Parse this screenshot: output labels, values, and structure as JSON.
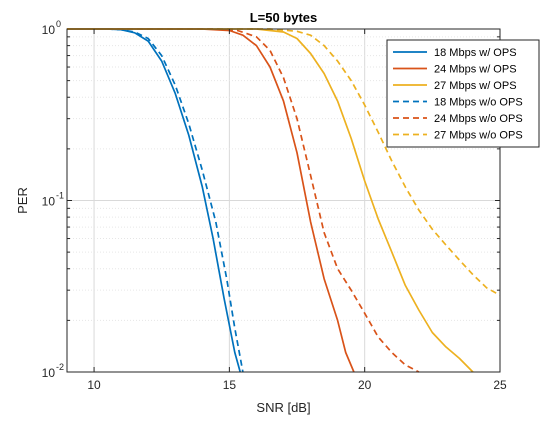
{
  "chart_data": {
    "type": "line",
    "title": "L=50 bytes",
    "xlabel": "SNR [dB]",
    "ylabel": "PER",
    "xlim": [
      9,
      25
    ],
    "ylim": [
      0.01,
      1
    ],
    "yscale": "log",
    "grid": true,
    "legend_position": "top-right",
    "x_ticks": [
      {
        "value": 10,
        "label": "10"
      },
      {
        "value": 15,
        "label": "15"
      },
      {
        "value": 20,
        "label": "20"
      },
      {
        "value": 25,
        "label": "25"
      }
    ],
    "y_ticks": [
      {
        "value": 1,
        "label": "10",
        "exp": "0"
      },
      {
        "value": 0.1,
        "label": "10",
        "exp": "-1"
      },
      {
        "value": 0.01,
        "label": "10",
        "exp": "-2"
      }
    ],
    "series": [
      {
        "name": "18 Mbps w/ OPS",
        "color": "#0072BD",
        "dash": "solid",
        "points": [
          [
            9,
            1
          ],
          [
            10,
            1
          ],
          [
            10.5,
            1
          ],
          [
            11,
            0.99
          ],
          [
            11.5,
            0.95
          ],
          [
            12,
            0.85
          ],
          [
            12.5,
            0.65
          ],
          [
            13,
            0.42
          ],
          [
            13.5,
            0.24
          ],
          [
            14,
            0.12
          ],
          [
            14.4,
            0.06
          ],
          [
            14.8,
            0.027
          ],
          [
            15.2,
            0.013
          ],
          [
            15.4,
            0.01
          ]
        ]
      },
      {
        "name": "24 Mbps w/ OPS",
        "color": "#D95319",
        "dash": "solid",
        "points": [
          [
            9,
            1
          ],
          [
            12,
            1
          ],
          [
            14,
            1
          ],
          [
            15,
            0.98
          ],
          [
            15.5,
            0.92
          ],
          [
            16,
            0.8
          ],
          [
            16.5,
            0.6
          ],
          [
            17,
            0.38
          ],
          [
            17.5,
            0.19
          ],
          [
            18,
            0.075
          ],
          [
            18.5,
            0.035
          ],
          [
            19,
            0.02
          ],
          [
            19.3,
            0.013
          ],
          [
            19.6,
            0.01
          ]
        ]
      },
      {
        "name": "27 Mbps w/ OPS",
        "color": "#EDB120",
        "dash": "solid",
        "points": [
          [
            9,
            1
          ],
          [
            14,
            1
          ],
          [
            16,
            1
          ],
          [
            17,
            0.96
          ],
          [
            17.5,
            0.88
          ],
          [
            18,
            0.72
          ],
          [
            18.5,
            0.55
          ],
          [
            19,
            0.38
          ],
          [
            19.5,
            0.23
          ],
          [
            20,
            0.13
          ],
          [
            20.5,
            0.078
          ],
          [
            21,
            0.05
          ],
          [
            21.5,
            0.032
          ],
          [
            22,
            0.023
          ],
          [
            22.5,
            0.017
          ],
          [
            23,
            0.014
          ],
          [
            23.5,
            0.012
          ],
          [
            24,
            0.01
          ]
        ]
      },
      {
        "name": "18 Mbps w/o OPS",
        "color": "#0072BD",
        "dash": "dashed",
        "points": [
          [
            9,
            1
          ],
          [
            10,
            1
          ],
          [
            10.5,
            1
          ],
          [
            11,
            0.99
          ],
          [
            11.5,
            0.96
          ],
          [
            12,
            0.88
          ],
          [
            12.5,
            0.7
          ],
          [
            13,
            0.47
          ],
          [
            13.5,
            0.28
          ],
          [
            14,
            0.15
          ],
          [
            14.5,
            0.075
          ],
          [
            14.9,
            0.035
          ],
          [
            15.2,
            0.018
          ],
          [
            15.5,
            0.01
          ]
        ]
      },
      {
        "name": "24 Mbps w/o OPS",
        "color": "#D95319",
        "dash": "dashed",
        "points": [
          [
            9,
            1
          ],
          [
            13,
            1
          ],
          [
            14.5,
            1
          ],
          [
            15.3,
            0.98
          ],
          [
            16,
            0.9
          ],
          [
            16.5,
            0.75
          ],
          [
            17,
            0.52
          ],
          [
            17.5,
            0.3
          ],
          [
            18,
            0.14
          ],
          [
            18.5,
            0.065
          ],
          [
            19,
            0.04
          ],
          [
            19.5,
            0.03
          ],
          [
            20,
            0.022
          ],
          [
            20.5,
            0.016
          ],
          [
            21,
            0.013
          ],
          [
            21.5,
            0.011
          ],
          [
            22,
            0.01
          ]
        ]
      },
      {
        "name": "27 Mbps w/o OPS",
        "color": "#EDB120",
        "dash": "dashed",
        "points": [
          [
            9,
            1
          ],
          [
            15,
            1
          ],
          [
            16.5,
            1
          ],
          [
            17.5,
            0.97
          ],
          [
            18,
            0.92
          ],
          [
            18.5,
            0.8
          ],
          [
            19,
            0.65
          ],
          [
            19.5,
            0.5
          ],
          [
            20,
            0.36
          ],
          [
            20.5,
            0.25
          ],
          [
            21,
            0.17
          ],
          [
            21.5,
            0.12
          ],
          [
            22,
            0.088
          ],
          [
            22.5,
            0.068
          ],
          [
            23,
            0.055
          ],
          [
            23.5,
            0.045
          ],
          [
            24,
            0.037
          ],
          [
            24.5,
            0.031
          ],
          [
            25,
            0.028
          ]
        ]
      }
    ]
  }
}
